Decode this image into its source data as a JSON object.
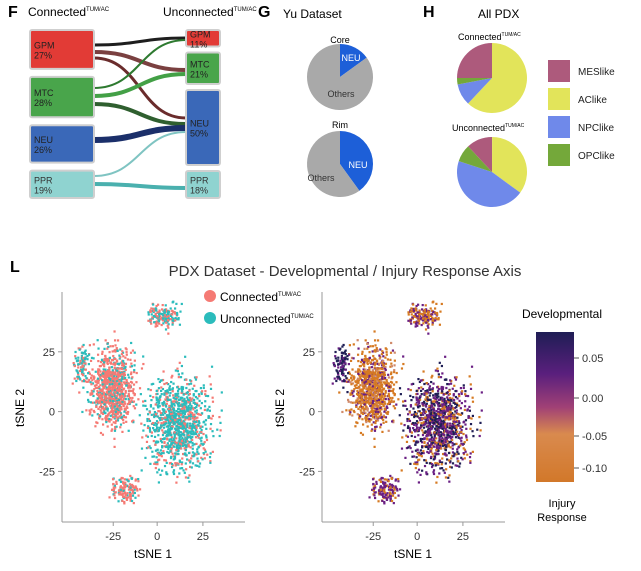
{
  "panels": {
    "F": {
      "letter": "F",
      "left_title": "Connected",
      "left_sup": "TUM/AC",
      "right_title": "Unconnected",
      "right_sup": "TUM/AC"
    },
    "G": {
      "letter": "G",
      "title": "Yu Dataset"
    },
    "H": {
      "letter": "H",
      "title": "All PDX"
    },
    "L": {
      "letter": "L",
      "title": "PDX Dataset - Developmental / Injury Response Axis"
    }
  },
  "colors": {
    "gpm": "#e23b36",
    "mtc": "#49a54b",
    "neu": "#3a68b8",
    "ppr": "#8fd3d0",
    "grey": "#a9a9a9",
    "neu_blue": "#1d5fd8",
    "mes": "#ad5a7c",
    "ac": "#e2e45a",
    "npc": "#6f89ea",
    "opc": "#74a83a",
    "connected": "#f57a74",
    "unconnected": "#2bbcbc",
    "dev_dark": "#1f1e55",
    "dev_mid": "#6a1f83",
    "dev_zero": "#d08a6a",
    "injury": "#d67a22"
  },
  "chart_data": [
    {
      "type": "sankey",
      "panel": "F",
      "left_nodes": [
        {
          "name": "GPM",
          "pct": "27%",
          "value": 27
        },
        {
          "name": "MTC",
          "pct": "28%",
          "value": 28
        },
        {
          "name": "NEU",
          "pct": "26%",
          "value": 26
        },
        {
          "name": "PPR",
          "pct": "19%",
          "value": 19
        }
      ],
      "right_nodes": [
        {
          "name": "GPM",
          "pct": "11%",
          "value": 11
        },
        {
          "name": "MTC",
          "pct": "21%",
          "value": 21
        },
        {
          "name": "NEU",
          "pct": "50%",
          "value": 50
        },
        {
          "name": "PPR",
          "pct": "18%",
          "value": 18
        }
      ]
    },
    {
      "type": "pie",
      "panel": "G",
      "pies": [
        {
          "title": "Core",
          "slices": [
            {
              "label": "NEU",
              "value": 15
            },
            {
              "label": "Others",
              "value": 85
            }
          ]
        },
        {
          "title": "Rim",
          "slices": [
            {
              "label": "NEU",
              "value": 40
            },
            {
              "label": "Others",
              "value": 60
            }
          ]
        }
      ]
    },
    {
      "type": "pie",
      "panel": "H",
      "pies": [
        {
          "title": "Connected",
          "title_sup": "TUM/AC",
          "slices": [
            {
              "label": "MESlike",
              "value": 25
            },
            {
              "label": "AClike",
              "value": 62
            },
            {
              "label": "NPClike",
              "value": 10
            },
            {
              "label": "OPClike",
              "value": 3
            }
          ]
        },
        {
          "title": "Unconnected",
          "title_sup": "TUM/AC",
          "slices": [
            {
              "label": "MESlike",
              "value": 12
            },
            {
              "label": "AClike",
              "value": 35
            },
            {
              "label": "NPClike",
              "value": 45
            },
            {
              "label": "OPClike",
              "value": 8
            }
          ]
        }
      ],
      "legend": [
        "MESlike",
        "AClike",
        "NPClike",
        "OPClike"
      ]
    },
    {
      "type": "scatter",
      "panel": "L",
      "plots": [
        {
          "id": "left",
          "xlabel": "tSNE 1",
          "ylabel": "tSNE 2",
          "xticks": [
            "-25",
            "0",
            "25"
          ],
          "yticks": [
            "25",
            "0",
            "-25"
          ],
          "legend": [
            {
              "label": "Connected",
              "sup": "TUM/AC"
            },
            {
              "label": "Unconnected",
              "sup": "TUM/AC"
            }
          ]
        },
        {
          "id": "right",
          "xlabel": "tSNE 1",
          "ylabel": "tSNE 2",
          "xticks": [
            "-25",
            "0",
            "25"
          ],
          "yticks": [
            "25",
            "0",
            "-25"
          ]
        }
      ],
      "colorbar": {
        "title": "Developmental",
        "bottom_label_1": "Injury",
        "bottom_label_2": "Response",
        "ticks": [
          "0.05",
          "0.00",
          "-0.05",
          "-0.10"
        ]
      }
    }
  ]
}
